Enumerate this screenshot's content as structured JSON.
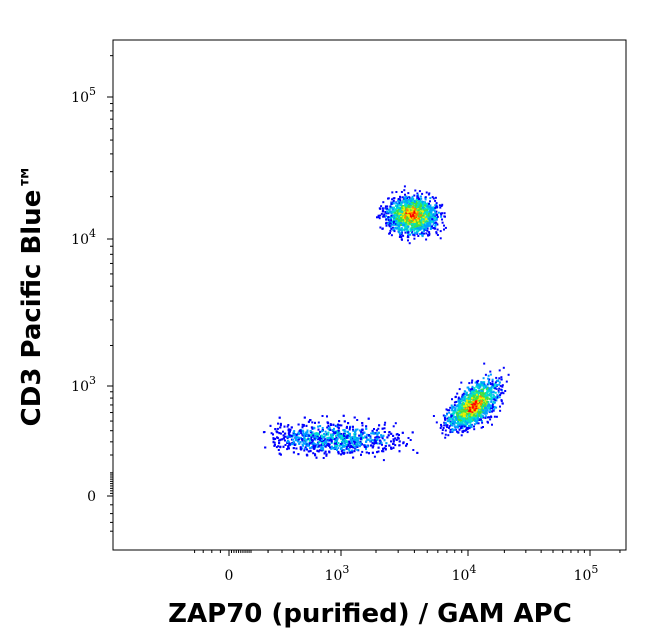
{
  "chart_data": {
    "type": "scatter",
    "subtype": "flow-cytometry-density-dot-plot",
    "title": "",
    "xlabel": "ZAP70 (purified) / GAM APC",
    "ylabel": "CD3 Pacific Blue™",
    "x_scale": "biexponential",
    "y_scale": "biexponential",
    "x_ticks": [
      {
        "value": 0,
        "label": "0"
      },
      {
        "value": 1000,
        "label": "10",
        "exp": "3"
      },
      {
        "value": 10000,
        "label": "10",
        "exp": "4"
      },
      {
        "value": 100000,
        "label": "10",
        "exp": "5"
      }
    ],
    "y_ticks": [
      {
        "value": 0,
        "label": "0"
      },
      {
        "value": 1000,
        "label": "10",
        "exp": "3"
      },
      {
        "value": 10000,
        "label": "10",
        "exp": "4"
      },
      {
        "value": 100000,
        "label": "10",
        "exp": "5"
      }
    ],
    "xlim": [
      -500,
      230000
    ],
    "ylim": [
      -500,
      260000
    ],
    "grid": false,
    "legend": "none",
    "density_colors": [
      "#0000ff",
      "#00a0ff",
      "#00e0d0",
      "#40e040",
      "#f0f000",
      "#ff8000",
      "#ff0000"
    ],
    "populations": [
      {
        "name": "",
        "x_center": 3800,
        "y_center": 15000,
        "x_spread": 0.16,
        "y_spread": 0.11,
        "count": 1500
      },
      {
        "name": "",
        "x_center": 11000,
        "y_center": 700,
        "x_spread": 0.17,
        "y_spread": 0.14,
        "count": 1400
      },
      {
        "name": "",
        "x_center": 900,
        "y_center": 330,
        "x_spread": 0.45,
        "y_spread": 0.15,
        "count": 1300
      }
    ]
  }
}
